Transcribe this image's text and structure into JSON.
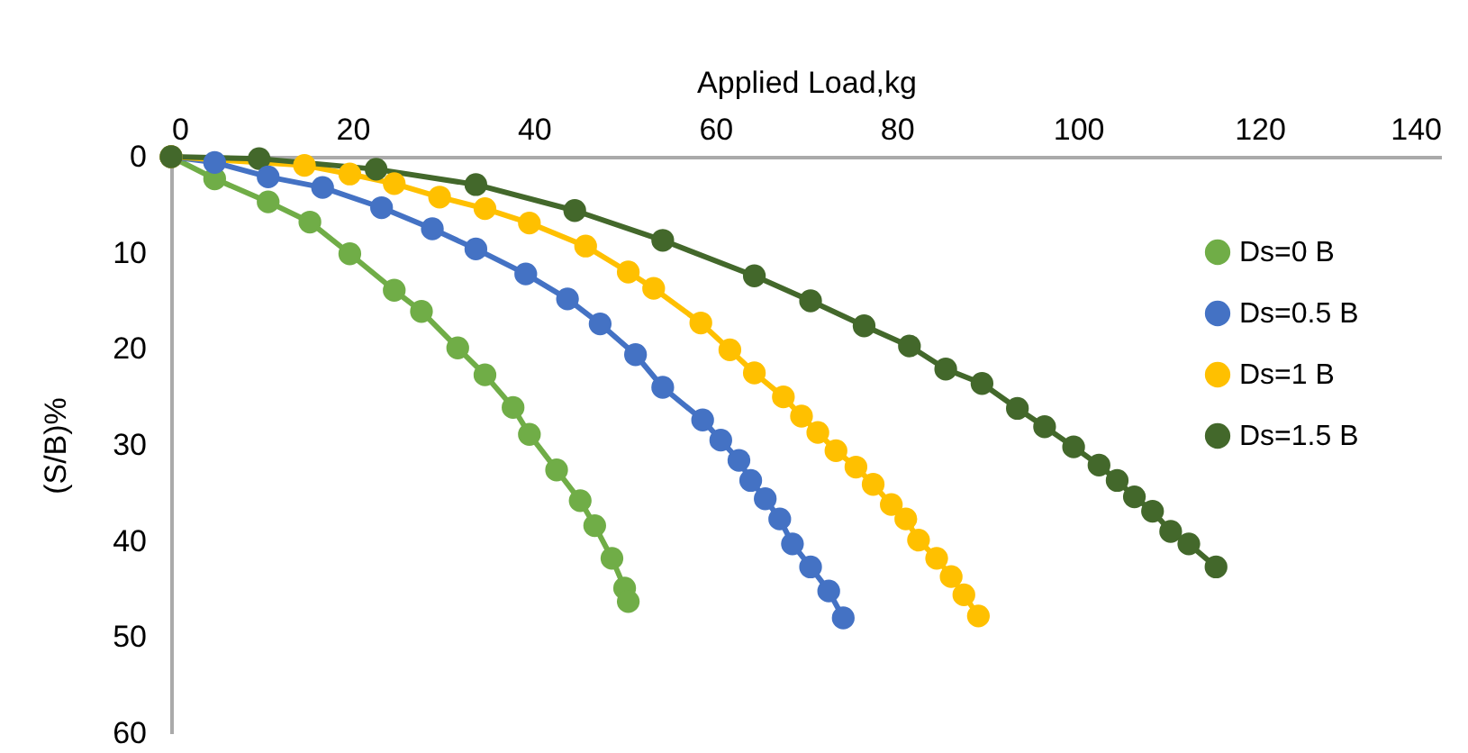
{
  "chart_data": {
    "type": "line",
    "xlabel": "Applied Load,kg",
    "ylabel": "(S/B)%",
    "xlim": [
      0,
      140
    ],
    "xticks": [
      0,
      20,
      40,
      60,
      80,
      100,
      120,
      140
    ],
    "ylim": [
      60,
      0
    ],
    "yticks": [
      0,
      10,
      20,
      30,
      40,
      50,
      60
    ],
    "grid": false,
    "legend": "top right",
    "marker": "circle",
    "line_style": "solid",
    "series": [
      {
        "name": "Ds=0 B",
        "color": "#70ad47",
        "x": [
          0,
          4.8,
          10.7,
          15.3,
          19.7,
          24.6,
          27.6,
          31.6,
          34.6,
          37.7,
          39.5,
          42.5,
          45.1,
          46.7,
          48.6,
          50,
          50.4
        ],
        "values": [
          0,
          2.3,
          4.7,
          6.8,
          10.1,
          13.9,
          16.1,
          19.9,
          22.7,
          26.1,
          28.9,
          32.6,
          35.8,
          38.4,
          41.8,
          44.9,
          46.3
        ]
      },
      {
        "name": "Ds=0.5 B",
        "color": "#4472c4",
        "x": [
          0,
          4.8,
          10.7,
          16.7,
          23.2,
          28.8,
          33.6,
          39.1,
          43.7,
          47.3,
          51.2,
          54.2,
          58.6,
          60.6,
          62.6,
          63.9,
          65.5,
          67.1,
          68.5,
          70.5,
          72.5,
          74.1
        ],
        "values": [
          0,
          0.6,
          2.1,
          3.2,
          5.3,
          7.5,
          9.6,
          12.2,
          14.8,
          17.4,
          20.6,
          24,
          27.4,
          29.5,
          31.6,
          33.7,
          35.6,
          37.7,
          40.3,
          42.7,
          45.2,
          48
        ]
      },
      {
        "name": "Ds=1 B",
        "color": "#ffc000",
        "x": [
          0,
          14.7,
          19.7,
          24.6,
          29.6,
          34.6,
          39.5,
          45.7,
          50.4,
          53.2,
          58.4,
          61.6,
          64.3,
          67.5,
          69.5,
          71.3,
          73.3,
          75.5,
          77.4,
          79.4,
          81,
          82.4,
          84.4,
          86,
          87.4,
          89
        ],
        "values": [
          0,
          0.9,
          1.8,
          2.8,
          4.2,
          5.4,
          6.9,
          9.3,
          12,
          13.7,
          17.3,
          20.1,
          22.5,
          25,
          27,
          28.7,
          30.6,
          32.3,
          34.1,
          36.2,
          37.7,
          39.9,
          41.8,
          43.7,
          45.6,
          47.8
        ]
      },
      {
        "name": "Ds=1.5 B",
        "color": "#43682b",
        "x": [
          0,
          9.7,
          22.6,
          33.6,
          44.5,
          54.2,
          64.3,
          70.5,
          76.4,
          81.4,
          85.4,
          89.4,
          93.3,
          96.3,
          99.5,
          102.3,
          104.3,
          106.2,
          108.2,
          110.2,
          112.2,
          115.2
        ],
        "values": [
          0,
          0.2,
          1.3,
          2.9,
          5.6,
          8.7,
          12.4,
          15,
          17.6,
          19.7,
          22.1,
          23.6,
          26.2,
          28.1,
          30.2,
          32.1,
          33.7,
          35.4,
          36.9,
          39,
          40.3,
          42.7
        ]
      }
    ]
  }
}
